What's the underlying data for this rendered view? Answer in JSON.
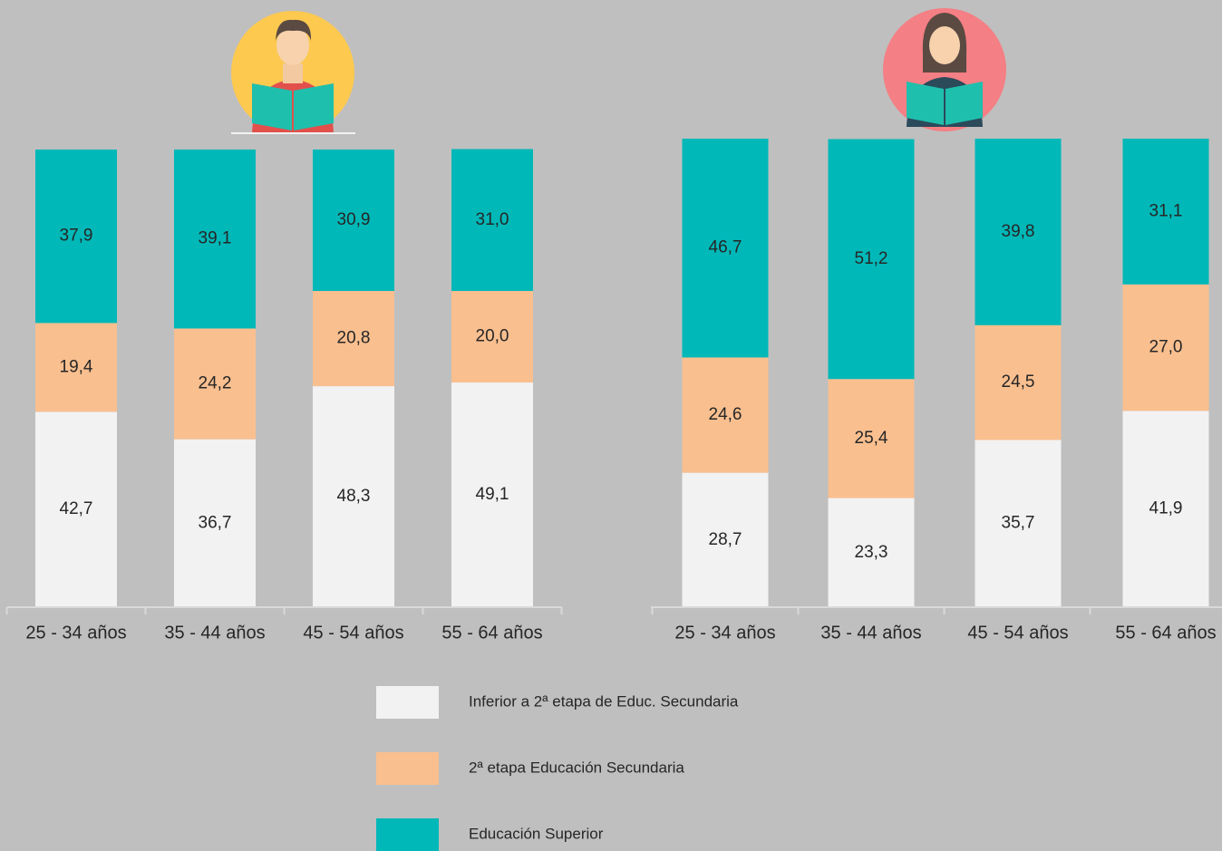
{
  "chart_data": [
    {
      "type": "bar",
      "stacked": true,
      "categories": [
        "25 - 34 años",
        "35 - 44 años",
        "45 - 54 años",
        "55 - 64 años"
      ],
      "ylim": [
        0,
        100
      ],
      "series": [
        {
          "name": "Inferior a 2ª etapa de Educ. Secundaria",
          "color": "#f2f2f2",
          "values": [
            42.7,
            36.7,
            48.3,
            49.1
          ],
          "value_labels": [
            "42,7",
            "36,7",
            "48,3",
            "49,1"
          ]
        },
        {
          "name": "2ª etapa Educación Secundaria",
          "color": "#f9bf8f",
          "values": [
            19.4,
            24.2,
            20.8,
            20.0
          ],
          "value_labels": [
            "19,4",
            "24,2",
            "20,8",
            "20,0"
          ]
        },
        {
          "name": "Educación Superior",
          "color": "#00b8b8",
          "values": [
            37.9,
            39.1,
            30.9,
            31.0
          ],
          "value_labels": [
            "37,9",
            "39,1",
            "30,9",
            "31,0"
          ]
        }
      ]
    },
    {
      "type": "bar",
      "stacked": true,
      "categories": [
        "25 - 34 años",
        "35 - 44 años",
        "45 - 54 años",
        "55 - 64 años"
      ],
      "ylim": [
        0,
        100
      ],
      "series": [
        {
          "color": "#f2f2f2",
          "values": [
            28.7,
            23.3,
            35.7,
            41.9
          ],
          "value_labels": [
            "28,7",
            "23,3",
            "35,7",
            "41,9"
          ]
        },
        {
          "color": "#f9bf8f",
          "values": [
            24.6,
            25.4,
            24.5,
            27.0
          ],
          "value_labels": [
            "24,6",
            "25,4",
            "24,5",
            "27,0"
          ]
        },
        {
          "color": "#00b8b8",
          "values": [
            46.7,
            51.2,
            39.8,
            31.1
          ],
          "value_labels": [
            "46,7",
            "51,2",
            "39,8",
            "31,1"
          ]
        }
      ]
    }
  ]
}
